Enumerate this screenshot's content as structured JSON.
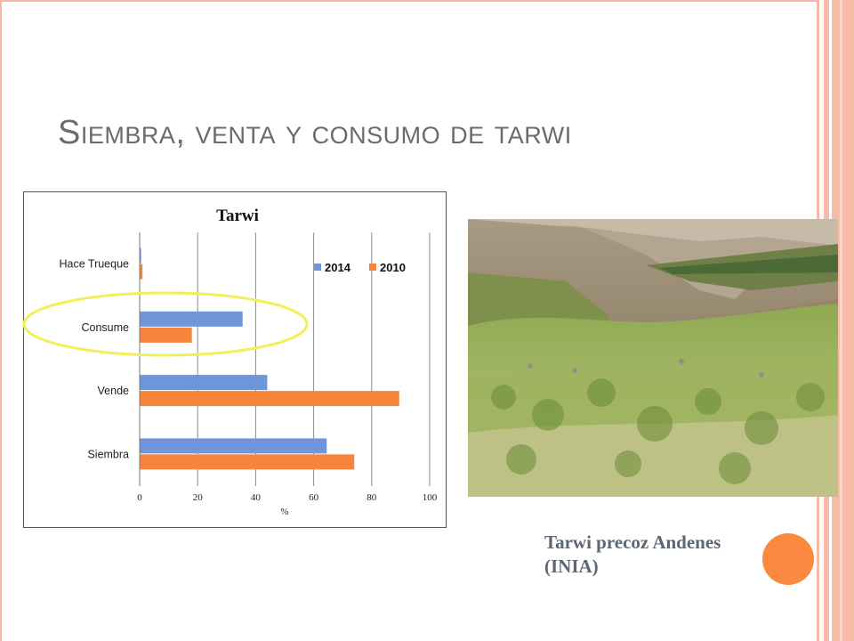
{
  "slide": {
    "title": "Siembra, venta y consumo de tarwi",
    "caption_line1": "Tarwi precoz Andenes",
    "caption_line2": "(INIA)",
    "accent_color": "#fb8a40",
    "highlight_color": "#f3ef5a"
  },
  "photo": {
    "description_icon": "photo-icon"
  },
  "chart_data": {
    "type": "bar",
    "orientation": "horizontal",
    "title": "Tarwi",
    "xlabel": "%",
    "ylabel": "",
    "xlim": [
      0,
      100
    ],
    "x_ticks": [
      "0",
      "20",
      "40",
      "60",
      "80",
      "100"
    ],
    "categories": [
      "Hace Trueque",
      "Consume",
      "Vende",
      "Siembra"
    ],
    "series": [
      {
        "name": "2014",
        "color": "#6f96d9",
        "values": [
          0.5,
          35.5,
          44,
          64.5
        ]
      },
      {
        "name": "2010",
        "color": "#f7843b",
        "values": [
          1,
          18,
          89.5,
          74
        ]
      }
    ],
    "legend_position": "top-right",
    "grid": "vertical",
    "highlighted_category": "Consume"
  }
}
